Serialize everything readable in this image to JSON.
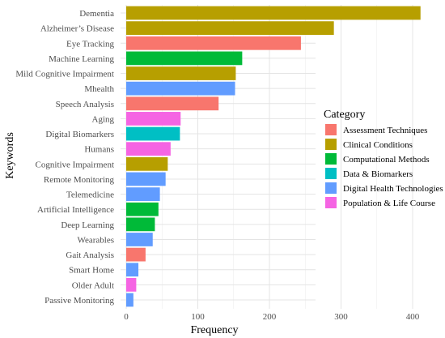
{
  "chart_data": {
    "type": "bar",
    "orientation": "horizontal",
    "xlabel": "Frequency",
    "ylabel": "Keywords",
    "xlim": [
      0,
      430
    ],
    "x_ticks": [
      0,
      100,
      200,
      300,
      400
    ],
    "grid": true,
    "legend_position": "right",
    "legend_title": "Category",
    "categories": [
      {
        "name": "Assessment Techniques",
        "color": "#F8766D"
      },
      {
        "name": "Clinical Conditions",
        "color": "#B79F00"
      },
      {
        "name": "Computational Methods",
        "color": "#00BA38"
      },
      {
        "name": "Data & Biomarkers",
        "color": "#00BFC4"
      },
      {
        "name": "Digital Health Technologies",
        "color": "#619CFF"
      },
      {
        "name": "Population & Life Course",
        "color": "#F564E3"
      }
    ],
    "bars": [
      {
        "keyword": "Dementia",
        "value": 411,
        "category": "Clinical Conditions"
      },
      {
        "keyword": "Alzheimer’s Disease",
        "value": 290,
        "category": "Clinical Conditions"
      },
      {
        "keyword": "Eye Tracking",
        "value": 244,
        "category": "Assessment Techniques"
      },
      {
        "keyword": "Machine Learning",
        "value": 162,
        "category": "Computational Methods"
      },
      {
        "keyword": "Mild Cognitive Impairment",
        "value": 153,
        "category": "Clinical Conditions"
      },
      {
        "keyword": "Mhealth",
        "value": 152,
        "category": "Digital Health Technologies"
      },
      {
        "keyword": "Speech Analysis",
        "value": 129,
        "category": "Assessment Techniques"
      },
      {
        "keyword": "Aging",
        "value": 76,
        "category": "Population & Life Course"
      },
      {
        "keyword": "Digital Biomarkers",
        "value": 75,
        "category": "Data & Biomarkers"
      },
      {
        "keyword": "Humans",
        "value": 62,
        "category": "Population & Life Course"
      },
      {
        "keyword": "Cognitive Impairment",
        "value": 58,
        "category": "Clinical Conditions"
      },
      {
        "keyword": "Remote Monitoring",
        "value": 55,
        "category": "Digital Health Technologies"
      },
      {
        "keyword": "Telemedicine",
        "value": 47,
        "category": "Digital Health Technologies"
      },
      {
        "keyword": "Artificial Intelligence",
        "value": 45,
        "category": "Computational Methods"
      },
      {
        "keyword": "Deep Learning",
        "value": 40,
        "category": "Computational Methods"
      },
      {
        "keyword": "Wearables",
        "value": 37,
        "category": "Digital Health Technologies"
      },
      {
        "keyword": "Gait Analysis",
        "value": 27,
        "category": "Assessment Techniques"
      },
      {
        "keyword": "Smart Home",
        "value": 17,
        "category": "Digital Health Technologies"
      },
      {
        "keyword": "Older Adult",
        "value": 14,
        "category": "Population & Life Course"
      },
      {
        "keyword": "Passive Monitoring",
        "value": 10,
        "category": "Digital Health Technologies"
      }
    ]
  }
}
